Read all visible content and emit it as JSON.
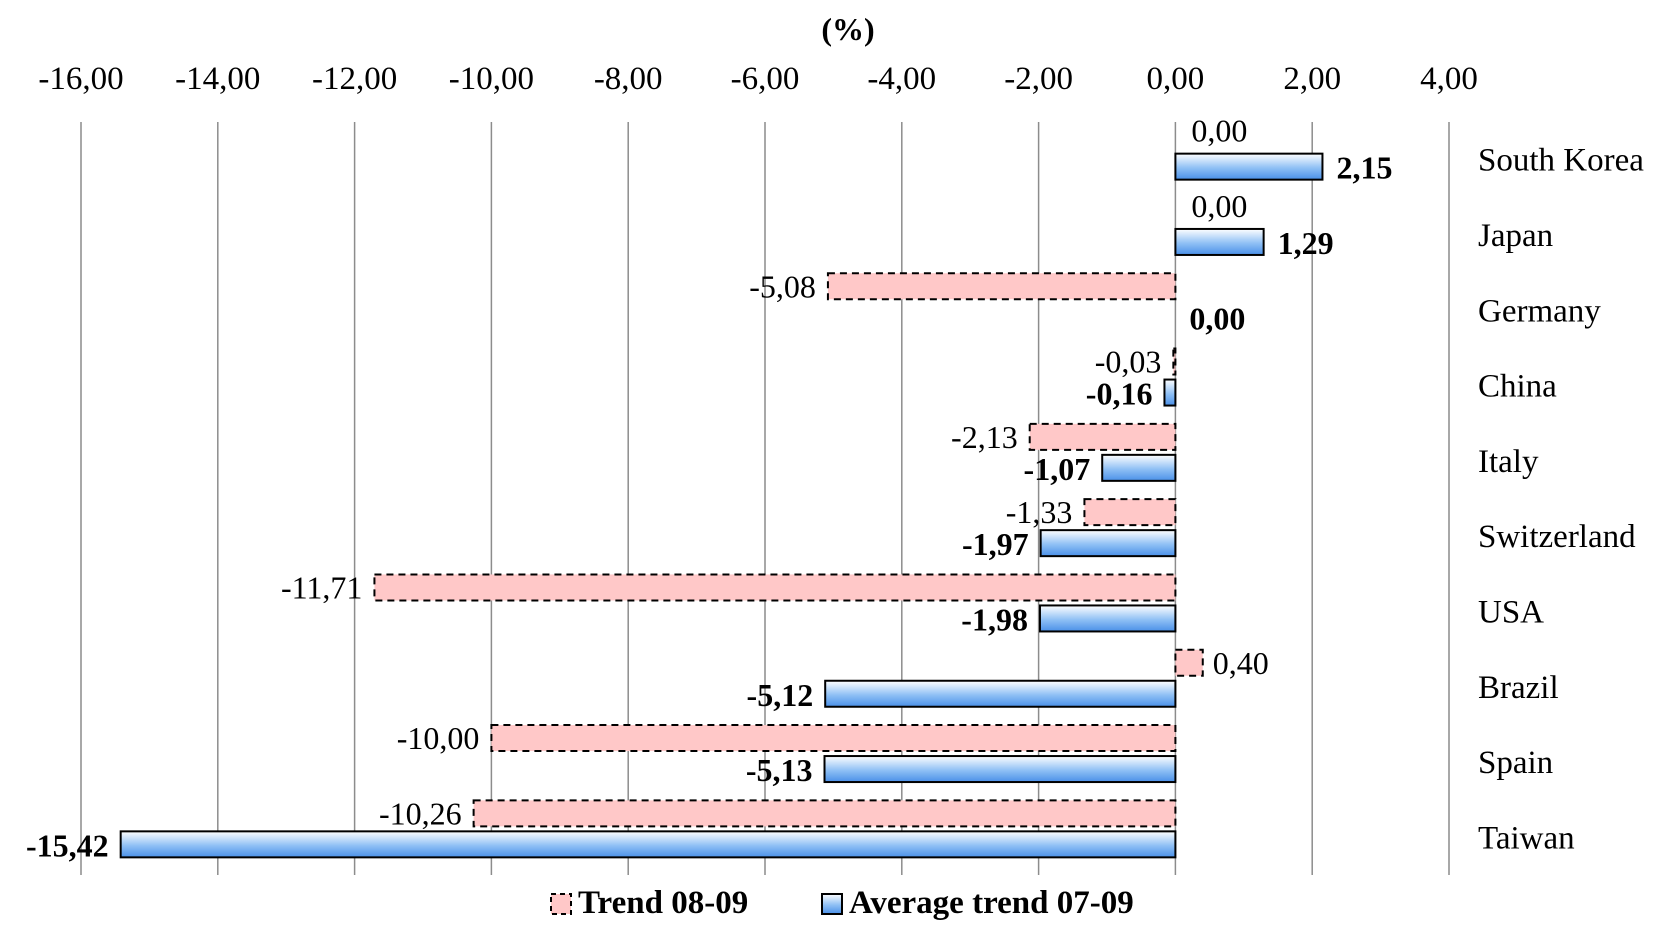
{
  "chart_data": {
    "type": "bar",
    "orientation": "horizontal",
    "title": "(%)",
    "xlim": [
      -16,
      4
    ],
    "ticks": [
      "-16,00",
      "-14,00",
      "-12,00",
      "-10,00",
      "-8,00",
      "-6,00",
      "-4,00",
      "-2,00",
      "0,00",
      "2,00",
      "4,00"
    ],
    "tick_values": [
      -16,
      -14,
      -12,
      -10,
      -8,
      -6,
      -4,
      -2,
      0,
      2,
      4
    ],
    "categories": [
      "South Korea",
      "Japan",
      "Germany",
      "China",
      "Italy",
      "Switzerland",
      "USA",
      "Brazil",
      "Spain",
      "Taiwan"
    ],
    "grid": true,
    "legend_position": "bottom",
    "series": [
      {
        "name": "Trend 08-09",
        "color": "#ffc8c8",
        "border": "dashed",
        "values": [
          0,
          0,
          -5.08,
          -0.03,
          -2.13,
          -1.33,
          -11.71,
          0.4,
          -10.0,
          -10.26
        ],
        "labels": [
          "0,00",
          "0,00",
          "-5,08",
          "-0,03",
          "-2,13",
          "-1,33",
          "-11,71",
          "0,40",
          "-10,00",
          "-10,26"
        ]
      },
      {
        "name": "Average trend 07-09",
        "color": "#5aa0f0",
        "border": "solid",
        "values": [
          2.15,
          1.29,
          0,
          -0.16,
          -1.07,
          -1.97,
          -1.98,
          -5.12,
          -5.13,
          -15.42
        ],
        "labels": [
          "2,15",
          "1,29",
          "0,00",
          "-0,16",
          "-1,07",
          "-1,97",
          "-1,98",
          "-5,12",
          "-5,13",
          "-15,42"
        ]
      }
    ]
  }
}
